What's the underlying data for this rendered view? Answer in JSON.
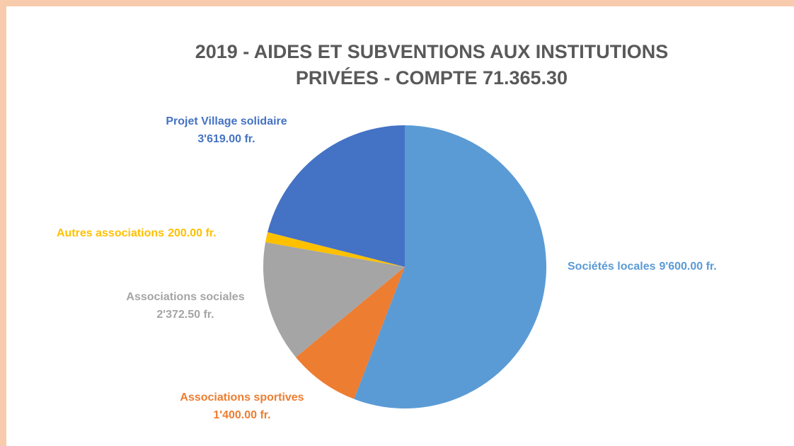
{
  "chart_data": {
    "type": "pie",
    "title": [
      "2019 - AIDES ET SUBVENTIONS AUX INSTITUTIONS",
      "PRIVÉES - COMPTE 71.365.30"
    ],
    "categories": [
      "Sociétés locales",
      "Associations sportives",
      "Associations sociales",
      "Autres associations",
      "Projet Village solidaire"
    ],
    "values": [
      9600,
      1400,
      2372.5,
      200,
      3619
    ],
    "value_labels": [
      "9'600.00 fr.",
      "1'400.00 fr.",
      "2'372.50 fr.",
      "200.00 fr.",
      "3'619.00 fr."
    ],
    "colors": [
      "#5b9bd5",
      "#ed7d31",
      "#a5a5a5",
      "#ffc000",
      "#4472c4"
    ]
  }
}
